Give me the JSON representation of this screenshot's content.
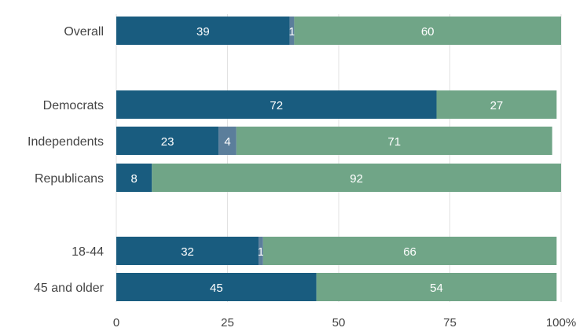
{
  "chart_data": {
    "type": "bar",
    "orientation": "horizontal",
    "stacked": true,
    "categories": [
      "Overall",
      "Democrats",
      "Independents",
      "Republicans",
      "18-44",
      "45 and older"
    ],
    "series": [
      {
        "values": [
          39,
          72,
          23,
          8,
          32,
          45
        ],
        "color": "#195c7f"
      },
      {
        "values": [
          1,
          0,
          4,
          0,
          1,
          0
        ],
        "color": "#5b7e9b"
      },
      {
        "values": [
          60,
          27,
          71,
          92,
          66,
          54
        ],
        "color": "#70a587"
      }
    ],
    "x_ticks": [
      "0",
      "25",
      "50",
      "75",
      "100%"
    ],
    "xlim": [
      0,
      100
    ],
    "grid": true,
    "legend": "none"
  }
}
